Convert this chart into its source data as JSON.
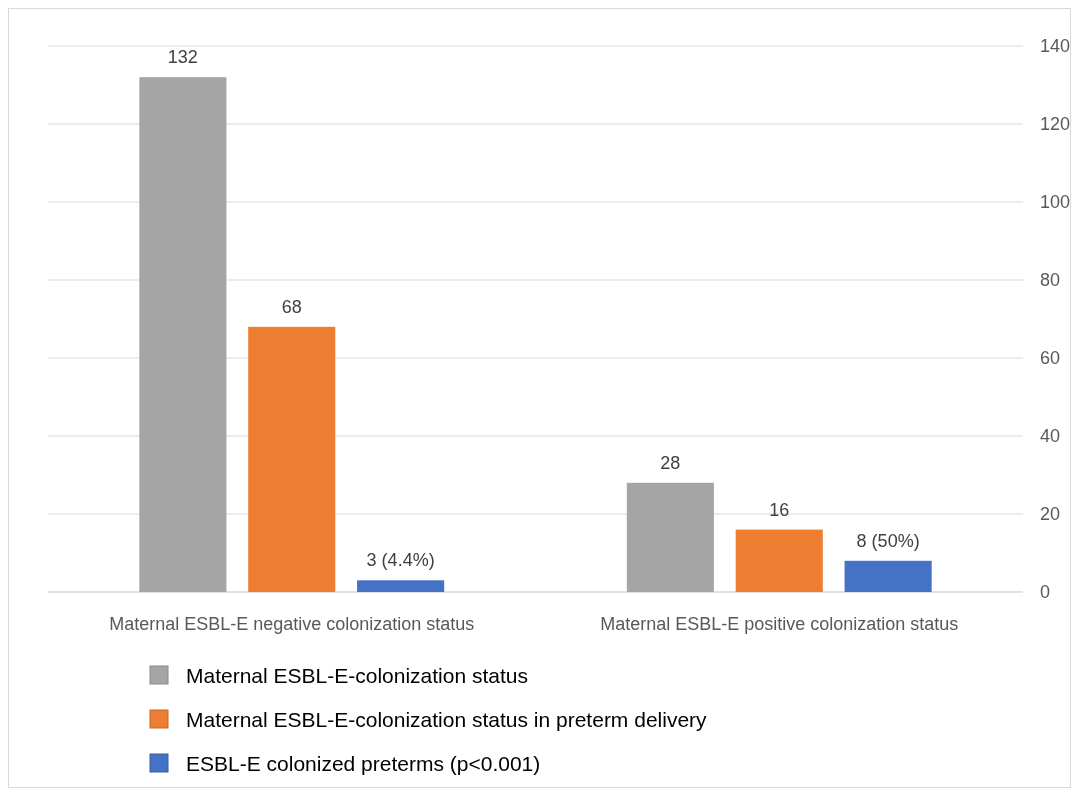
{
  "chart_data": {
    "type": "bar",
    "categories": [
      "Maternal ESBL-E negative colonization status",
      "Maternal ESBL-E positive colonization status"
    ],
    "series": [
      {
        "name": "Maternal ESBL-E-colonization status",
        "color": "#a5a5a5",
        "values": [
          132,
          28
        ],
        "value_labels": [
          "132",
          "28"
        ]
      },
      {
        "name": "Maternal ESBL-E-colonization status in preterm delivery",
        "color": "#ed7d31",
        "values": [
          68,
          16
        ],
        "value_labels": [
          "68",
          "16"
        ]
      },
      {
        "name": "ESBL-E colonized preterms (p<0.001)",
        "color": "#4472c4",
        "values": [
          3,
          8
        ],
        "value_labels": [
          "3 (4.4%)",
          "8 (50%)"
        ]
      }
    ],
    "ylim": [
      0,
      140
    ],
    "yticks": [
      0,
      20,
      40,
      60,
      80,
      100,
      120,
      140
    ],
    "grid": "y",
    "legend": "bottom"
  }
}
